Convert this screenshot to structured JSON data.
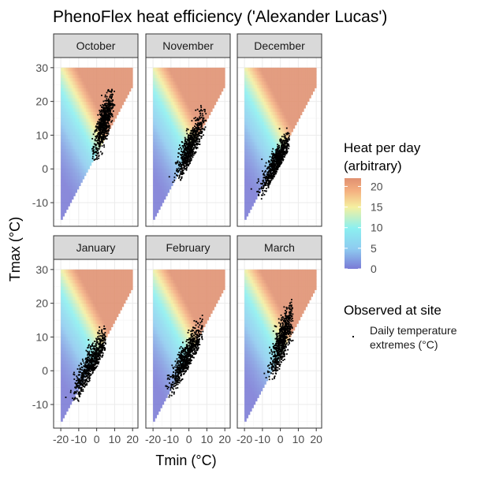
{
  "chart_data": {
    "type": "heatmap",
    "title": "PhenoFlex heat efficiency ('Alexander Lucas')",
    "xlabel": "Tmin (°C)",
    "ylabel": "Tmax (°C)",
    "xlim": [
      -24,
      23
    ],
    "ylim": [
      -17,
      33
    ],
    "x_ticks": [
      -20,
      -10,
      0,
      10,
      20
    ],
    "x_tick_labels": [
      "-20",
      "-10",
      "0",
      "10",
      "20"
    ],
    "y_ticks": [
      -10,
      0,
      10,
      20,
      30
    ],
    "y_tick_labels": [
      "-10",
      "0",
      "10",
      "20",
      "30"
    ],
    "heat_domain": {
      "tmin_range": [
        -20,
        20
      ],
      "tmax_range": [
        -15,
        30
      ],
      "constraint": "Tmax >= Tmin + 5"
    },
    "legend": {
      "fill_title_line1": "Heat per day",
      "fill_title_line2": "(arbitrary)",
      "fill_breaks": [
        0,
        5,
        10,
        15,
        20
      ],
      "fill_break_labels": [
        "0",
        "5",
        "10",
        "15",
        "20"
      ],
      "fill_range": [
        0,
        22
      ],
      "colors": [
        "#7a7ad6",
        "#8ecbf0",
        "#8cf0f0",
        "#f5f0a0",
        "#f5b080",
        "#e09070"
      ],
      "points_title": "Observed at site",
      "points_label_line1": "Daily temperature",
      "points_label_line2": "extremes (°C)"
    },
    "panels": [
      {
        "month": "October",
        "cx": 4.0,
        "cy": 13.5,
        "sx": 2.8,
        "sy": 4.5,
        "rho": 0.75,
        "n": 700,
        "tmin_range": [
          -3,
          10
        ],
        "tmax_range": [
          2,
          24
        ]
      },
      {
        "month": "November",
        "cx": 0.5,
        "cy": 6.0,
        "sx": 3.8,
        "sy": 4.8,
        "rho": 0.82,
        "n": 700,
        "tmin_range": [
          -11,
          10
        ],
        "tmax_range": [
          -4,
          19
        ]
      },
      {
        "month": "December",
        "cx": -2.0,
        "cy": 2.0,
        "sx": 4.2,
        "sy": 4.5,
        "rho": 0.85,
        "n": 700,
        "tmin_range": [
          -17,
          5
        ],
        "tmax_range": [
          -11,
          13
        ]
      },
      {
        "month": "January",
        "cx": -2.5,
        "cy": 2.5,
        "sx": 5.0,
        "sy": 5.0,
        "rho": 0.86,
        "n": 700,
        "tmin_range": [
          -20,
          5
        ],
        "tmax_range": [
          -9,
          14
        ]
      },
      {
        "month": "February",
        "cx": -1.0,
        "cy": 4.0,
        "sx": 4.8,
        "sy": 5.0,
        "rho": 0.85,
        "n": 700,
        "tmin_range": [
          -18,
          8
        ],
        "tmax_range": [
          -8,
          18
        ]
      },
      {
        "month": "March",
        "cx": 1.0,
        "cy": 9.0,
        "sx": 3.3,
        "sy": 5.2,
        "rho": 0.8,
        "n": 700,
        "tmin_range": [
          -11,
          7
        ],
        "tmax_range": [
          -3,
          23
        ]
      }
    ],
    "grid": true
  }
}
